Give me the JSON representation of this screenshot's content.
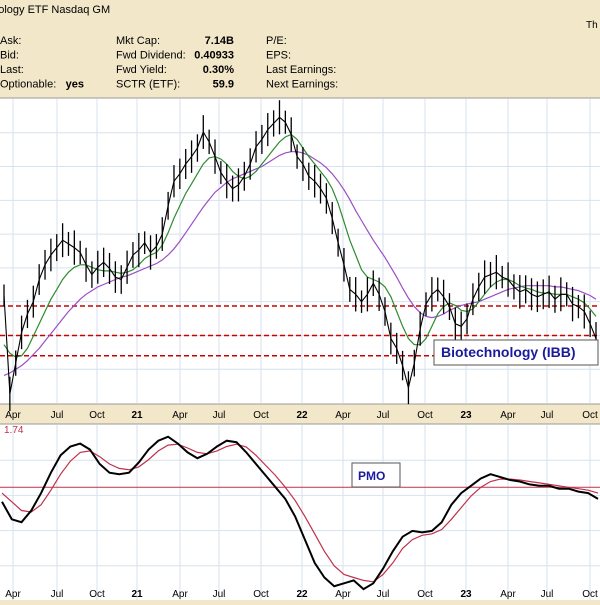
{
  "header": {
    "title": "onology ETF Nasdaq GM",
    "corner": "Th",
    "info": [
      {
        "label": "Ask:",
        "value": ""
      },
      {
        "label": "Bid:",
        "value": ""
      },
      {
        "label": "Last:",
        "value": ""
      },
      {
        "label": "Optionable:",
        "value": "yes"
      },
      {
        "label": "Mkt Cap:",
        "value": "7.14B"
      },
      {
        "label": "Fwd Dividend:",
        "value": "0.40933"
      },
      {
        "label": "Fwd Yield:",
        "value": "0.30%"
      },
      {
        "label": "SCTR (ETF):",
        "value": "59.9"
      },
      {
        "label": "P/E:",
        "value": ""
      },
      {
        "label": "EPS:",
        "value": ""
      },
      {
        "label": "Last Earnings:",
        "value": ""
      },
      {
        "label": "Next Earnings:",
        "value": ""
      }
    ]
  },
  "colors": {
    "background": "#f3e7c9",
    "panel": "#ffffff",
    "grid": "#d6e2ee",
    "price": "#000000",
    "ma_short": "#2e8b2e",
    "ma_long": "#9b4fc4",
    "support_lines": "#cc0000",
    "pmo": "#000000",
    "pmo_signal": "#c0314a",
    "label_text": "#1a1a9c"
  },
  "chart_data": [
    {
      "type": "line",
      "name_label": "Biotechnology (IBB)",
      "x_ticks": [
        "Apr",
        "Jul",
        "Oct",
        "21",
        "Apr",
        "Jul",
        "Oct",
        "22",
        "Apr",
        "Jul",
        "Oct",
        "23",
        "Apr",
        "Jul",
        "Oct"
      ],
      "horizontal_lines": [
        0.36,
        0.525,
        0.765
      ],
      "series": [
        {
          "values": [
            0.85,
            0.05,
            0.3,
            0.55,
            0.7,
            0.8,
            0.98,
            1.1,
            1.18,
            1.24,
            1.3,
            1.27,
            1.24,
            1.2,
            1.1,
            1.02,
            1.08,
            1.12,
            1.07,
            1.0,
            0.98,
            1.08,
            1.18,
            1.22,
            1.28,
            1.2,
            1.25,
            1.35,
            1.58,
            1.78,
            1.84,
            1.92,
            1.98,
            2.05,
            2.18,
            2.1,
            1.98,
            1.85,
            1.78,
            1.72,
            1.75,
            1.82,
            1.92,
            2.06,
            2.12,
            2.2,
            2.25,
            2.3,
            2.26,
            2.16,
            1.98,
            1.92,
            1.82,
            1.78,
            1.72,
            1.64,
            1.48,
            1.28,
            1.1,
            0.9,
            0.86,
            0.8,
            0.86,
            0.95,
            0.86,
            0.72,
            0.5,
            0.42,
            0.28,
            0.1,
            0.3,
            0.58,
            0.78,
            0.86,
            0.9,
            0.84,
            0.76,
            0.62,
            0.6,
            0.66,
            0.82,
            0.92,
            1.0,
            1.02,
            1.04,
            1.0,
            0.98,
            0.92,
            0.88,
            0.9,
            0.86,
            0.84,
            0.86,
            0.88,
            0.82,
            0.86,
            0.86,
            0.78,
            0.76,
            0.72,
            0.62,
            0.5
          ]
        },
        {
          "values": [
            0.45,
            0.38,
            0.35,
            0.36,
            0.42,
            0.52,
            0.62,
            0.72,
            0.82,
            0.9,
            0.98,
            1.04,
            1.08,
            1.1,
            1.1,
            1.08,
            1.06,
            1.05,
            1.05,
            1.04,
            1.03,
            1.04,
            1.06,
            1.1,
            1.15,
            1.18,
            1.2,
            1.26,
            1.36,
            1.48,
            1.58,
            1.68,
            1.76,
            1.84,
            1.92,
            1.97,
            1.98,
            1.96,
            1.92,
            1.86,
            1.82,
            1.8,
            1.82,
            1.86,
            1.92,
            1.98,
            2.04,
            2.1,
            2.14,
            2.16,
            2.12,
            2.05,
            1.98,
            1.92,
            1.86,
            1.8,
            1.72,
            1.6,
            1.45,
            1.3,
            1.18,
            1.06,
            1.0,
            0.98,
            0.96,
            0.92,
            0.84,
            0.72,
            0.6,
            0.5,
            0.45,
            0.45,
            0.5,
            0.6,
            0.7,
            0.76,
            0.79,
            0.77,
            0.73,
            0.72,
            0.74,
            0.8,
            0.86,
            0.92,
            0.96,
            0.98,
            0.98,
            0.96,
            0.93,
            0.91,
            0.9,
            0.88,
            0.87,
            0.87,
            0.86,
            0.86,
            0.86,
            0.84,
            0.82,
            0.79,
            0.74,
            0.68
          ]
        },
        {
          "values": [
            0.2,
            0.22,
            0.25,
            0.28,
            0.32,
            0.37,
            0.42,
            0.48,
            0.54,
            0.6,
            0.66,
            0.72,
            0.77,
            0.82,
            0.86,
            0.89,
            0.92,
            0.94,
            0.96,
            0.98,
            1.0,
            1.01,
            1.03,
            1.05,
            1.07,
            1.09,
            1.11,
            1.14,
            1.18,
            1.23,
            1.29,
            1.36,
            1.43,
            1.5,
            1.57,
            1.63,
            1.69,
            1.73,
            1.77,
            1.8,
            1.82,
            1.84,
            1.86,
            1.88,
            1.9,
            1.93,
            1.96,
            1.99,
            2.01,
            2.02,
            2.02,
            2.01,
            1.99,
            1.96,
            1.93,
            1.89,
            1.84,
            1.78,
            1.71,
            1.63,
            1.54,
            1.46,
            1.38,
            1.3,
            1.23,
            1.16,
            1.08,
            1.0,
            0.91,
            0.83,
            0.76,
            0.71,
            0.68,
            0.67,
            0.68,
            0.7,
            0.73,
            0.75,
            0.77,
            0.78,
            0.79,
            0.8,
            0.82,
            0.84,
            0.86,
            0.88,
            0.9,
            0.91,
            0.92,
            0.93,
            0.93,
            0.93,
            0.93,
            0.93,
            0.92,
            0.92,
            0.91,
            0.9,
            0.89,
            0.87,
            0.85,
            0.82
          ]
        }
      ]
    },
    {
      "type": "line",
      "label_value": "1.74",
      "name_label": "PMO",
      "x_ticks": [
        "Apr",
        "Jul",
        "Oct",
        "21",
        "Apr",
        "Jul",
        "Oct",
        "22",
        "Apr",
        "Jul",
        "Oct",
        "23",
        "Apr",
        "Jul",
        "Oct"
      ],
      "zero_line": 0,
      "series": [
        {
          "values": [
            -0.5,
            -1.1,
            -1.2,
            -0.8,
            -0.2,
            0.5,
            1.1,
            1.4,
            1.5,
            1.3,
            0.8,
            0.5,
            0.45,
            0.5,
            0.85,
            1.3,
            1.6,
            1.74,
            1.5,
            1.2,
            1.0,
            1.15,
            1.4,
            1.6,
            1.55,
            1.2,
            0.8,
            0.4,
            0.0,
            -0.4,
            -1.0,
            -1.8,
            -2.6,
            -3.1,
            -3.4,
            -3.3,
            -3.2,
            -3.5,
            -3.3,
            -2.8,
            -2.2,
            -1.7,
            -1.5,
            -1.55,
            -1.5,
            -1.2,
            -0.6,
            -0.2,
            0.05,
            0.3,
            0.45,
            0.35,
            0.25,
            0.2,
            0.1,
            0.05,
            0.05,
            -0.05,
            -0.05,
            -0.15,
            -0.2,
            -0.4
          ]
        },
        {
          "values": [
            -0.2,
            -0.5,
            -0.8,
            -0.85,
            -0.6,
            -0.1,
            0.45,
            0.9,
            1.2,
            1.25,
            1.05,
            0.8,
            0.65,
            0.6,
            0.7,
            0.95,
            1.25,
            1.45,
            1.48,
            1.35,
            1.2,
            1.15,
            1.25,
            1.4,
            1.48,
            1.38,
            1.1,
            0.75,
            0.4,
            0.0,
            -0.45,
            -1.0,
            -1.6,
            -2.2,
            -2.7,
            -3.0,
            -3.1,
            -3.2,
            -3.25,
            -3.0,
            -2.6,
            -2.1,
            -1.8,
            -1.65,
            -1.6,
            -1.45,
            -1.1,
            -0.7,
            -0.3,
            0.0,
            0.2,
            0.28,
            0.28,
            0.25,
            0.2,
            0.15,
            0.1,
            0.05,
            0.0,
            -0.05,
            -0.1,
            -0.2
          ]
        }
      ]
    }
  ]
}
